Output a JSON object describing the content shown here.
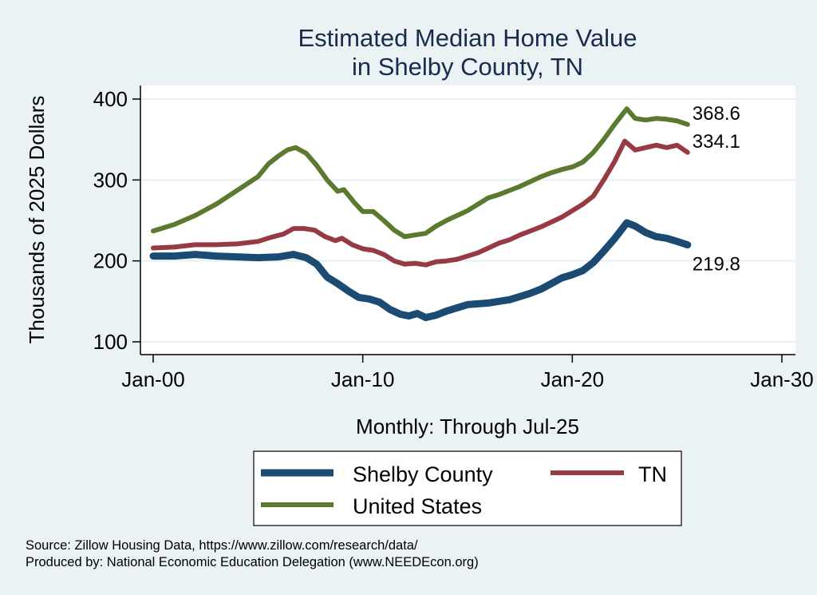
{
  "chart_data": {
    "type": "line",
    "title": [
      "Estimated Median Home Value",
      "in Shelby County, TN"
    ],
    "xlabel": "Monthly: Through Jul-25",
    "ylabel": "Thousands of 2025 Dollars",
    "xlim": [
      2000,
      2030
    ],
    "ylim": [
      92,
      410
    ],
    "x_ticks": [
      {
        "value": 2000,
        "label": "Jan-00"
      },
      {
        "value": 2010,
        "label": "Jan-10"
      },
      {
        "value": 2020,
        "label": "Jan-20"
      },
      {
        "value": 2030,
        "label": "Jan-30"
      }
    ],
    "y_ticks": [
      {
        "value": 100,
        "label": "100"
      },
      {
        "value": 200,
        "label": "200"
      },
      {
        "value": 300,
        "label": "300"
      },
      {
        "value": 400,
        "label": "400"
      }
    ],
    "grid": true,
    "legend_position": "bottom",
    "series": [
      {
        "name": "Shelby County",
        "color": "#1b4a72",
        "end_label": "219.8",
        "x": [
          2000,
          2001,
          2002,
          2003,
          2004,
          2005,
          2006,
          2006.7,
          2007.3,
          2007.8,
          2008.3,
          2008.8,
          2009.3,
          2009.8,
          2010.3,
          2010.8,
          2011.3,
          2011.8,
          2012.2,
          2012.6,
          2013.0,
          2013.5,
          2014.0,
          2014.5,
          2015.0,
          2015.5,
          2016.0,
          2016.5,
          2017.0,
          2017.5,
          2018.0,
          2018.5,
          2019.0,
          2019.5,
          2020.0,
          2020.5,
          2021.0,
          2021.5,
          2022.0,
          2022.3,
          2022.6,
          2023.0,
          2023.5,
          2024.0,
          2024.5,
          2025.0,
          2025.5
        ],
        "values": [
          206,
          206,
          208,
          206,
          205,
          204,
          205,
          208,
          204,
          196,
          180,
          172,
          163,
          155,
          153,
          149,
          140,
          134,
          132,
          135,
          130,
          133,
          138,
          142,
          146,
          147,
          148,
          150,
          152,
          156,
          160,
          165,
          172,
          179,
          183,
          188,
          198,
          212,
          227,
          237,
          247,
          243,
          235,
          230,
          228,
          224,
          219.8
        ]
      },
      {
        "name": "TN",
        "color": "#963a44",
        "end_label": "334.1",
        "x": [
          2000,
          2001,
          2002,
          2003,
          2004,
          2005,
          2005.6,
          2006.2,
          2006.7,
          2007.2,
          2007.7,
          2008.2,
          2008.7,
          2009.0,
          2009.5,
          2010.0,
          2010.5,
          2011.0,
          2011.5,
          2012.0,
          2012.5,
          2013.0,
          2013.5,
          2014.0,
          2014.5,
          2015.0,
          2015.5,
          2016.0,
          2016.5,
          2017.0,
          2017.5,
          2018.0,
          2018.5,
          2019.0,
          2019.5,
          2020.0,
          2020.5,
          2021.0,
          2021.5,
          2022.0,
          2022.5,
          2023.0,
          2023.5,
          2024.0,
          2024.5,
          2025.0,
          2025.5
        ],
        "values": [
          216,
          217,
          220,
          220,
          221,
          224,
          229,
          233,
          240,
          240,
          238,
          230,
          225,
          228,
          220,
          215,
          213,
          208,
          200,
          196,
          197,
          195,
          199,
          200,
          202,
          206,
          210,
          216,
          222,
          226,
          232,
          237,
          242,
          248,
          254,
          262,
          270,
          280,
          300,
          322,
          348,
          337,
          340,
          343,
          340,
          343,
          334.1
        ]
      },
      {
        "name": "United States",
        "color": "#5b7a2f",
        "end_label": "368.6",
        "x": [
          2000,
          2001,
          2002,
          2003,
          2004,
          2005,
          2005.5,
          2006.0,
          2006.4,
          2006.8,
          2007.3,
          2007.8,
          2008.3,
          2008.8,
          2009.1,
          2009.6,
          2010.0,
          2010.5,
          2011.0,
          2011.5,
          2012.0,
          2012.5,
          2013.0,
          2013.5,
          2014.0,
          2014.5,
          2015.0,
          2015.5,
          2016.0,
          2016.5,
          2017.0,
          2017.5,
          2018.0,
          2018.5,
          2019.0,
          2019.5,
          2020.0,
          2020.5,
          2021.0,
          2021.5,
          2022.0,
          2022.3,
          2022.6,
          2023.0,
          2023.5,
          2024.0,
          2024.5,
          2025.0,
          2025.5
        ],
        "values": [
          237,
          245,
          256,
          270,
          287,
          304,
          320,
          330,
          337,
          340,
          333,
          318,
          300,
          286,
          288,
          272,
          261,
          261,
          250,
          238,
          230,
          232,
          234,
          243,
          250,
          256,
          262,
          270,
          278,
          282,
          287,
          292,
          298,
          304,
          309,
          313,
          316,
          322,
          334,
          350,
          368,
          378,
          388,
          376,
          374,
          376,
          375,
          373,
          368.6
        ]
      }
    ]
  },
  "footer": {
    "source": "Source: Zillow Housing Data, https://www.zillow.com/research/data/",
    "producer": "Produced by: National Economic Education Delegation (www.NEEDEcon.org)"
  }
}
